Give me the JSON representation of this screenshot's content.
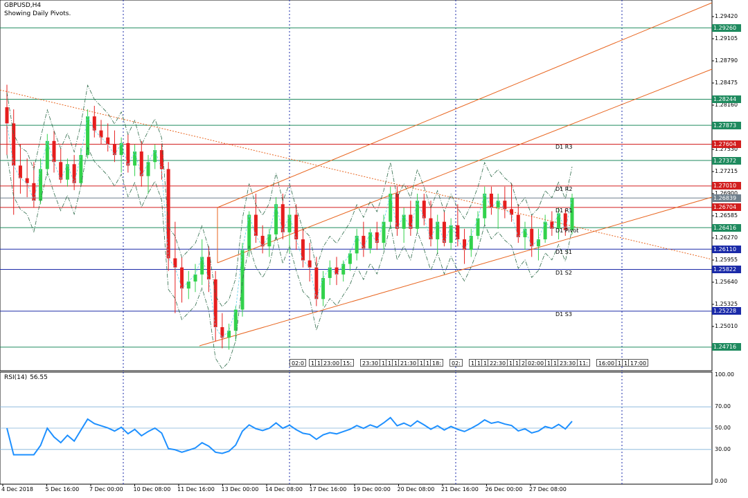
{
  "header": {
    "symbol": "GBPUSD,H4",
    "indicator": "Showing Daily Pivots."
  },
  "rsi": {
    "label": "RSI(14)",
    "value": "56.55",
    "scale": [
      "100.00",
      "70.00",
      "50.00",
      "30.00",
      "0.00"
    ]
  },
  "price_scale": [
    "1.29420",
    "1.29105",
    "1.28790",
    "1.28475",
    "1.28160",
    "1.27845",
    "1.27530",
    "1.27215",
    "1.26900",
    "1.26585",
    "1.26270",
    "1.25955",
    "1.25640",
    "1.25325",
    "1.25010"
  ],
  "price_tags": [
    {
      "price": "1.29260",
      "color": "#1e8a5e"
    },
    {
      "price": "1.28244",
      "color": "#1e8a5e"
    },
    {
      "price": "1.27873",
      "color": "#1e8a5e"
    },
    {
      "price": "1.27604",
      "color": "#d21e1e"
    },
    {
      "price": "1.27372",
      "color": "#1e8a5e"
    },
    {
      "price": "1.27010",
      "color": "#d21e1e"
    },
    {
      "price": "1.26839",
      "color": "#6e7f8c"
    },
    {
      "price": "1.26704",
      "color": "#d21e1e"
    },
    {
      "price": "1.26416",
      "color": "#1e8a5e"
    },
    {
      "price": "1.26110",
      "color": "#1a2aa8"
    },
    {
      "price": "1.25822",
      "color": "#1a2aa8"
    },
    {
      "price": "1.25228",
      "color": "#1a2aa8"
    },
    {
      "price": "1.24716",
      "color": "#1e8a5e"
    }
  ],
  "pivot_labels": [
    "D1 R3",
    "D1 R2",
    "D1 R1",
    "D1 Pivot",
    "D1 S1",
    "D1 S2",
    "D1 S3"
  ],
  "time_tags": [
    "02:0",
    "1",
    "1",
    "23:00",
    "15:",
    "23:30",
    "1",
    "1",
    "1",
    "21:30",
    "1",
    "1",
    "18:",
    "02:",
    "1",
    "1",
    "1",
    "22:30",
    "1",
    "1",
    "2",
    "02:00",
    "1",
    "1",
    "23:30",
    "11:",
    "16:00",
    "1",
    "1",
    "17:00"
  ],
  "dates": [
    "4 Dec 2018",
    "5 Dec 16:00",
    "7 Dec 00:00",
    "10 Dec 08:00",
    "11 Dec 16:00",
    "13 Dec 00:00",
    "14 Dec 08:00",
    "17 Dec 16:00",
    "19 Dec 00:00",
    "20 Dec 08:00",
    "21 Dec 16:00",
    "26 Dec 00:00",
    "27 Dec 08:00"
  ],
  "colors": {
    "bull": "#32d24b",
    "bear": "#e61e1e",
    "rsi": "#1e90ff",
    "grid": "#1a2aa8",
    "trend": "#e8641e"
  },
  "chart_data": {
    "type": "candlestick",
    "candles": [
      {
        "o": 1.2813,
        "h": 1.2845,
        "l": 1.2745,
        "c": 1.279
      },
      {
        "o": 1.279,
        "h": 1.281,
        "l": 1.266,
        "c": 1.273
      },
      {
        "o": 1.273,
        "h": 1.276,
        "l": 1.269,
        "c": 1.2712
      },
      {
        "o": 1.2712,
        "h": 1.274,
        "l": 1.2685,
        "c": 1.2705
      },
      {
        "o": 1.2705,
        "h": 1.2735,
        "l": 1.267,
        "c": 1.268
      },
      {
        "o": 1.268,
        "h": 1.274,
        "l": 1.2675,
        "c": 1.2725
      },
      {
        "o": 1.2725,
        "h": 1.2775,
        "l": 1.2715,
        "c": 1.2765
      },
      {
        "o": 1.2765,
        "h": 1.278,
        "l": 1.272,
        "c": 1.2735
      },
      {
        "o": 1.2735,
        "h": 1.2755,
        "l": 1.2705,
        "c": 1.271
      },
      {
        "o": 1.271,
        "h": 1.274,
        "l": 1.27,
        "c": 1.2732
      },
      {
        "o": 1.2732,
        "h": 1.2745,
        "l": 1.2695,
        "c": 1.2705
      },
      {
        "o": 1.2705,
        "h": 1.2755,
        "l": 1.27,
        "c": 1.2745
      },
      {
        "o": 1.2745,
        "h": 1.281,
        "l": 1.274,
        "c": 1.28
      },
      {
        "o": 1.28,
        "h": 1.2815,
        "l": 1.277,
        "c": 1.278
      },
      {
        "o": 1.278,
        "h": 1.2795,
        "l": 1.276,
        "c": 1.277
      },
      {
        "o": 1.277,
        "h": 1.279,
        "l": 1.275,
        "c": 1.276
      },
      {
        "o": 1.276,
        "h": 1.278,
        "l": 1.2735,
        "c": 1.2745
      },
      {
        "o": 1.2745,
        "h": 1.277,
        "l": 1.272,
        "c": 1.2762
      },
      {
        "o": 1.2762,
        "h": 1.2775,
        "l": 1.272,
        "c": 1.273
      },
      {
        "o": 1.273,
        "h": 1.276,
        "l": 1.2715,
        "c": 1.275
      },
      {
        "o": 1.275,
        "h": 1.2765,
        "l": 1.27,
        "c": 1.2715
      },
      {
        "o": 1.2715,
        "h": 1.2745,
        "l": 1.269,
        "c": 1.2735
      },
      {
        "o": 1.2735,
        "h": 1.276,
        "l": 1.2725,
        "c": 1.2752
      },
      {
        "o": 1.2752,
        "h": 1.276,
        "l": 1.271,
        "c": 1.2725
      },
      {
        "o": 1.2725,
        "h": 1.2735,
        "l": 1.258,
        "c": 1.2598
      },
      {
        "o": 1.2598,
        "h": 1.265,
        "l": 1.252,
        "c": 1.2585
      },
      {
        "o": 1.2585,
        "h": 1.26,
        "l": 1.2535,
        "c": 1.2555
      },
      {
        "o": 1.2555,
        "h": 1.258,
        "l": 1.254,
        "c": 1.2565
      },
      {
        "o": 1.2565,
        "h": 1.259,
        "l": 1.255,
        "c": 1.2575
      },
      {
        "o": 1.2575,
        "h": 1.2625,
        "l": 1.256,
        "c": 1.26
      },
      {
        "o": 1.26,
        "h": 1.2615,
        "l": 1.255,
        "c": 1.2568
      },
      {
        "o": 1.2568,
        "h": 1.258,
        "l": 1.248,
        "c": 1.25
      },
      {
        "o": 1.25,
        "h": 1.252,
        "l": 1.247,
        "c": 1.2485
      },
      {
        "o": 1.2485,
        "h": 1.2505,
        "l": 1.2468,
        "c": 1.2495
      },
      {
        "o": 1.2495,
        "h": 1.253,
        "l": 1.248,
        "c": 1.2525
      },
      {
        "o": 1.2525,
        "h": 1.262,
        "l": 1.2515,
        "c": 1.261
      },
      {
        "o": 1.261,
        "h": 1.2665,
        "l": 1.26,
        "c": 1.266
      },
      {
        "o": 1.266,
        "h": 1.269,
        "l": 1.262,
        "c": 1.263
      },
      {
        "o": 1.263,
        "h": 1.2645,
        "l": 1.2605,
        "c": 1.2615
      },
      {
        "o": 1.2615,
        "h": 1.264,
        "l": 1.26,
        "c": 1.2632
      },
      {
        "o": 1.2632,
        "h": 1.2685,
        "l": 1.2625,
        "c": 1.2675
      },
      {
        "o": 1.2675,
        "h": 1.269,
        "l": 1.2625,
        "c": 1.2635
      },
      {
        "o": 1.2635,
        "h": 1.267,
        "l": 1.2605,
        "c": 1.266
      },
      {
        "o": 1.266,
        "h": 1.2675,
        "l": 1.261,
        "c": 1.2625
      },
      {
        "o": 1.2625,
        "h": 1.264,
        "l": 1.2585,
        "c": 1.2595
      },
      {
        "o": 1.2595,
        "h": 1.262,
        "l": 1.2565,
        "c": 1.2585
      },
      {
        "o": 1.2585,
        "h": 1.26,
        "l": 1.253,
        "c": 1.254
      },
      {
        "o": 1.254,
        "h": 1.258,
        "l": 1.253,
        "c": 1.257
      },
      {
        "o": 1.257,
        "h": 1.2595,
        "l": 1.256,
        "c": 1.2585
      },
      {
        "o": 1.2585,
        "h": 1.26,
        "l": 1.256,
        "c": 1.2575
      },
      {
        "o": 1.2575,
        "h": 1.2595,
        "l": 1.2565,
        "c": 1.259
      },
      {
        "o": 1.259,
        "h": 1.261,
        "l": 1.258,
        "c": 1.2605
      },
      {
        "o": 1.2605,
        "h": 1.264,
        "l": 1.2595,
        "c": 1.263
      },
      {
        "o": 1.263,
        "h": 1.265,
        "l": 1.26,
        "c": 1.2612
      },
      {
        "o": 1.2612,
        "h": 1.264,
        "l": 1.2605,
        "c": 1.2635
      },
      {
        "o": 1.2635,
        "h": 1.265,
        "l": 1.261,
        "c": 1.262
      },
      {
        "o": 1.262,
        "h": 1.266,
        "l": 1.261,
        "c": 1.265
      },
      {
        "o": 1.265,
        "h": 1.27,
        "l": 1.264,
        "c": 1.269
      },
      {
        "o": 1.269,
        "h": 1.27,
        "l": 1.263,
        "c": 1.264
      },
      {
        "o": 1.264,
        "h": 1.267,
        "l": 1.262,
        "c": 1.266
      },
      {
        "o": 1.266,
        "h": 1.268,
        "l": 1.263,
        "c": 1.264
      },
      {
        "o": 1.264,
        "h": 1.269,
        "l": 1.2635,
        "c": 1.268
      },
      {
        "o": 1.268,
        "h": 1.269,
        "l": 1.2645,
        "c": 1.2655
      },
      {
        "o": 1.2655,
        "h": 1.268,
        "l": 1.2615,
        "c": 1.2625
      },
      {
        "o": 1.2625,
        "h": 1.266,
        "l": 1.2605,
        "c": 1.265
      },
      {
        "o": 1.265,
        "h": 1.2665,
        "l": 1.2615,
        "c": 1.262
      },
      {
        "o": 1.262,
        "h": 1.2655,
        "l": 1.261,
        "c": 1.2645
      },
      {
        "o": 1.2645,
        "h": 1.2675,
        "l": 1.2615,
        "c": 1.2625
      },
      {
        "o": 1.2625,
        "h": 1.264,
        "l": 1.259,
        "c": 1.261
      },
      {
        "o": 1.261,
        "h": 1.264,
        "l": 1.26,
        "c": 1.263
      },
      {
        "o": 1.263,
        "h": 1.2665,
        "l": 1.2625,
        "c": 1.2655
      },
      {
        "o": 1.2655,
        "h": 1.27,
        "l": 1.2645,
        "c": 1.269
      },
      {
        "o": 1.269,
        "h": 1.27,
        "l": 1.266,
        "c": 1.267
      },
      {
        "o": 1.267,
        "h": 1.269,
        "l": 1.264,
        "c": 1.268
      },
      {
        "o": 1.268,
        "h": 1.27,
        "l": 1.2655,
        "c": 1.2668
      },
      {
        "o": 1.2668,
        "h": 1.2705,
        "l": 1.265,
        "c": 1.266
      },
      {
        "o": 1.266,
        "h": 1.2675,
        "l": 1.262,
        "c": 1.2628
      },
      {
        "o": 1.2628,
        "h": 1.265,
        "l": 1.261,
        "c": 1.264
      },
      {
        "o": 1.264,
        "h": 1.266,
        "l": 1.26,
        "c": 1.2615
      },
      {
        "o": 1.2615,
        "h": 1.264,
        "l": 1.2595,
        "c": 1.2625
      },
      {
        "o": 1.2625,
        "h": 1.266,
        "l": 1.262,
        "c": 1.265
      },
      {
        "o": 1.265,
        "h": 1.2665,
        "l": 1.263,
        "c": 1.264
      },
      {
        "o": 1.264,
        "h": 1.267,
        "l": 1.2625,
        "c": 1.2662
      },
      {
        "o": 1.2662,
        "h": 1.2668,
        "l": 1.263,
        "c": 1.2638
      },
      {
        "o": 1.2638,
        "h": 1.269,
        "l": 1.2632,
        "c": 1.2684
      }
    ]
  }
}
